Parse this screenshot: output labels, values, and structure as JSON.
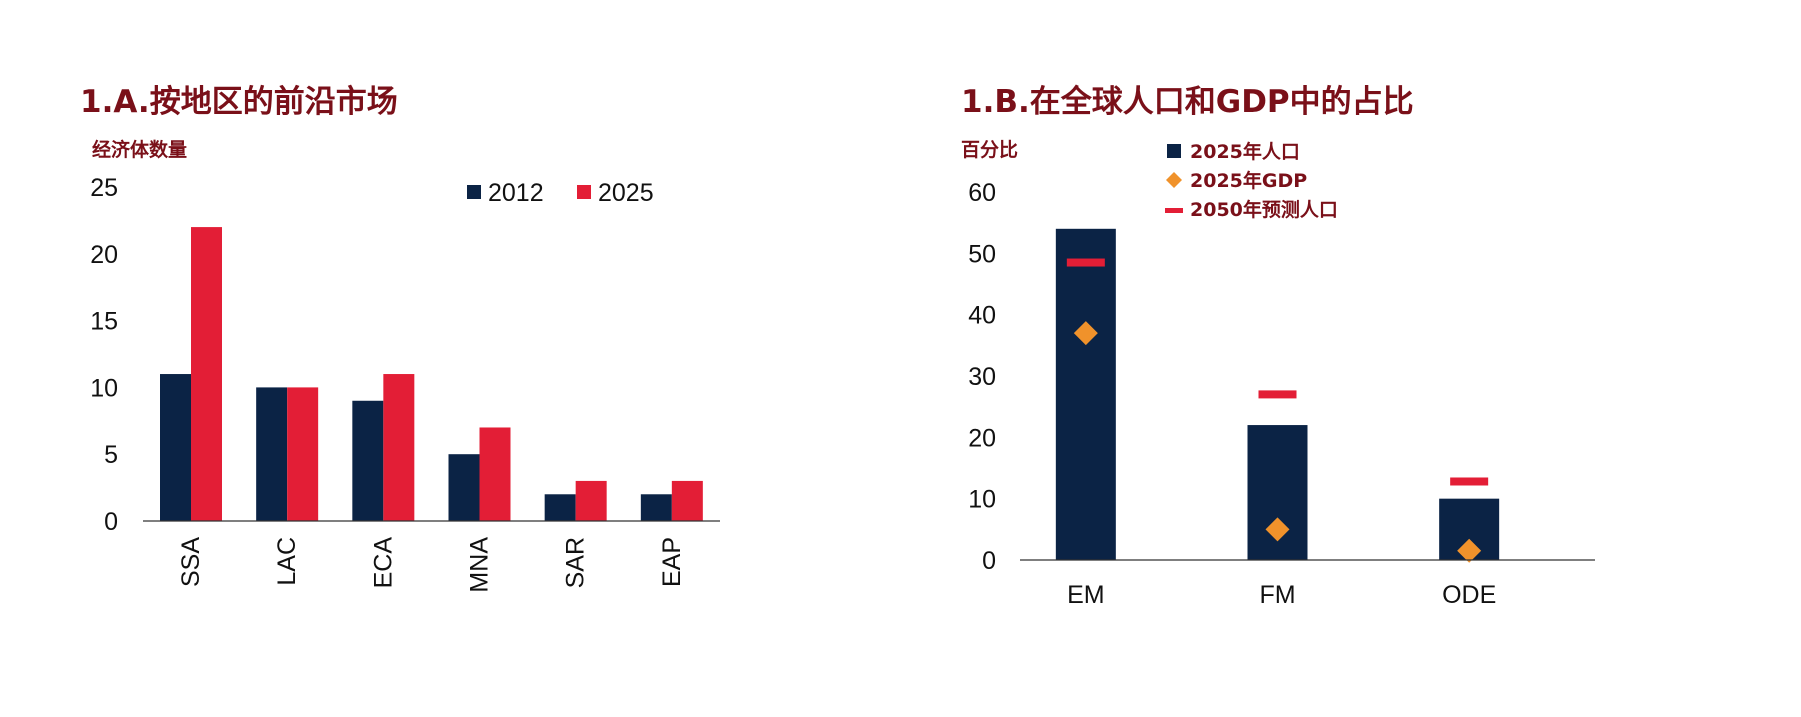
{
  "colors": {
    "navy": "#0b2345",
    "red": "#e31e36",
    "orange": "#f0922b",
    "title": "#7a1019"
  },
  "chart_data": [
    {
      "type": "bar",
      "title": "1.A.按地区的前沿市场",
      "ylabel": "经济体数量",
      "xlabel": "",
      "categories": [
        "SSA",
        "LAC",
        "ECA",
        "MNA",
        "SAR",
        "EAP"
      ],
      "series": [
        {
          "name": "2012",
          "values": [
            11,
            10,
            9,
            5,
            2,
            2
          ],
          "color": "#0b2345"
        },
        {
          "name": "2025",
          "values": [
            22,
            10,
            11,
            7,
            3,
            3
          ],
          "color": "#e31e36"
        }
      ],
      "ylim": [
        0,
        25
      ],
      "yticks": [
        "0",
        "5",
        "10",
        "15",
        "20",
        "25"
      ],
      "legend_position": "top-right",
      "grid": false
    },
    {
      "type": "bar",
      "title": "1.B.在全球人口和GDP中的占比",
      "ylabel": "百分比",
      "xlabel": "",
      "categories": [
        "EM",
        "FM",
        "ODE"
      ],
      "series": [
        {
          "name": "2025年人口",
          "kind": "bar",
          "values": [
            54,
            22,
            10
          ],
          "color": "#0b2345"
        },
        {
          "name": "2025年GDP",
          "kind": "diamond",
          "values": [
            37,
            5,
            1.5
          ],
          "color": "#f0922b"
        },
        {
          "name": "2050年预测人口",
          "kind": "dash",
          "values": [
            48.5,
            27,
            12.8
          ],
          "color": "#e31e36"
        }
      ],
      "ylim": [
        0,
        60
      ],
      "yticks": [
        "0",
        "10",
        "20",
        "30",
        "40",
        "50",
        "60"
      ],
      "legend_position": "top",
      "grid": false
    }
  ]
}
